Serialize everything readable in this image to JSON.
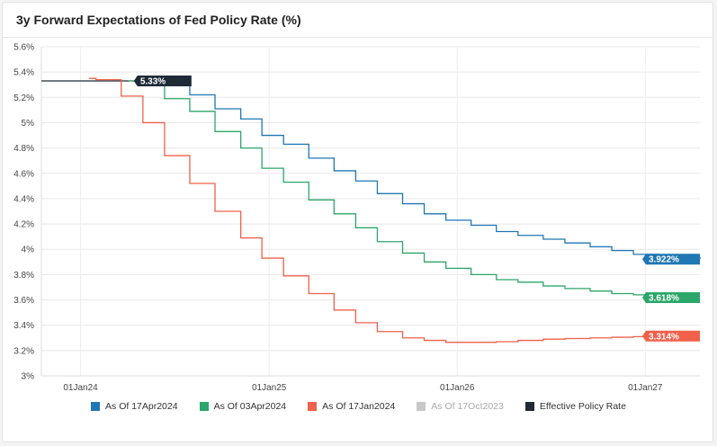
{
  "chart_data": {
    "type": "line",
    "title": "3y Forward Expectations of Fed Policy Rate (%)",
    "ylim": [
      3.0,
      5.6
    ],
    "y_ticks": [
      "3%",
      "3.2%",
      "3.4%",
      "3.6%",
      "3.8%",
      "4%",
      "4.2%",
      "4.4%",
      "4.6%",
      "4.8%",
      "5%",
      "5.2%",
      "5.4%",
      "5.6%"
    ],
    "x_ticks": [
      {
        "label": "01Jan24",
        "date": "2024-01-01"
      },
      {
        "label": "01Jan25",
        "date": "2025-01-01"
      },
      {
        "label": "01Jan26",
        "date": "2026-01-01"
      },
      {
        "label": "01Jan27",
        "date": "2027-01-01"
      }
    ],
    "x_range": [
      "2023-10-17",
      "2027-04-17"
    ],
    "grid": true,
    "legend_position": "bottom",
    "series": [
      {
        "name": "As Of 17Apr2024",
        "color": "#1f77b4",
        "end_label": "3.922%",
        "step": true,
        "points": [
          [
            "2024-04-17",
            5.33
          ],
          [
            "2024-05-01",
            5.32
          ],
          [
            "2024-06-12",
            5.3
          ],
          [
            "2024-07-31",
            5.22
          ],
          [
            "2024-09-18",
            5.11
          ],
          [
            "2024-11-07",
            5.03
          ],
          [
            "2024-12-18",
            4.9
          ],
          [
            "2025-01-29",
            4.83
          ],
          [
            "2025-03-19",
            4.72
          ],
          [
            "2025-05-07",
            4.62
          ],
          [
            "2025-06-18",
            4.54
          ],
          [
            "2025-07-30",
            4.44
          ],
          [
            "2025-09-17",
            4.36
          ],
          [
            "2025-10-29",
            4.28
          ],
          [
            "2025-12-10",
            4.23
          ],
          [
            "2026-01-28",
            4.19
          ],
          [
            "2026-03-18",
            4.14
          ],
          [
            "2026-04-29",
            4.11
          ],
          [
            "2026-06-17",
            4.08
          ],
          [
            "2026-07-29",
            4.05
          ],
          [
            "2026-09-16",
            4.02
          ],
          [
            "2026-10-28",
            3.99
          ],
          [
            "2026-12-09",
            3.96
          ],
          [
            "2027-01-27",
            3.95
          ],
          [
            "2027-03-17",
            3.935
          ],
          [
            "2027-04-17",
            3.922
          ]
        ]
      },
      {
        "name": "As Of 03Apr2024",
        "color": "#2ca66a",
        "end_label": "3.618%",
        "step": true,
        "points": [
          [
            "2024-04-03",
            5.33
          ],
          [
            "2024-05-01",
            5.3
          ],
          [
            "2024-06-12",
            5.19
          ],
          [
            "2024-07-31",
            5.09
          ],
          [
            "2024-09-18",
            4.93
          ],
          [
            "2024-11-07",
            4.8
          ],
          [
            "2024-12-18",
            4.64
          ],
          [
            "2025-01-29",
            4.53
          ],
          [
            "2025-03-19",
            4.39
          ],
          [
            "2025-05-07",
            4.28
          ],
          [
            "2025-06-18",
            4.17
          ],
          [
            "2025-07-30",
            4.06
          ],
          [
            "2025-09-17",
            3.97
          ],
          [
            "2025-10-29",
            3.9
          ],
          [
            "2025-12-10",
            3.85
          ],
          [
            "2026-01-28",
            3.8
          ],
          [
            "2026-03-18",
            3.76
          ],
          [
            "2026-04-29",
            3.74
          ],
          [
            "2026-06-17",
            3.71
          ],
          [
            "2026-07-29",
            3.69
          ],
          [
            "2026-09-16",
            3.67
          ],
          [
            "2026-10-28",
            3.65
          ],
          [
            "2026-12-09",
            3.64
          ],
          [
            "2027-01-27",
            3.63
          ],
          [
            "2027-04-03",
            3.618
          ]
        ]
      },
      {
        "name": "As Of 17Jan2024",
        "color": "#f0604a",
        "end_label": "3.314%",
        "step": true,
        "points": [
          [
            "2024-01-17",
            5.35
          ],
          [
            "2024-01-31",
            5.34
          ],
          [
            "2024-03-20",
            5.21
          ],
          [
            "2024-05-01",
            5.0
          ],
          [
            "2024-06-12",
            4.74
          ],
          [
            "2024-07-31",
            4.52
          ],
          [
            "2024-09-18",
            4.3
          ],
          [
            "2024-11-07",
            4.09
          ],
          [
            "2024-12-18",
            3.93
          ],
          [
            "2025-01-29",
            3.79
          ],
          [
            "2025-03-19",
            3.65
          ],
          [
            "2025-05-07",
            3.52
          ],
          [
            "2025-06-18",
            3.42
          ],
          [
            "2025-07-30",
            3.35
          ],
          [
            "2025-09-17",
            3.3
          ],
          [
            "2025-10-29",
            3.28
          ],
          [
            "2025-12-10",
            3.265
          ],
          [
            "2026-01-28",
            3.265
          ],
          [
            "2026-03-18",
            3.27
          ],
          [
            "2026-04-29",
            3.28
          ],
          [
            "2026-06-17",
            3.29
          ],
          [
            "2026-07-29",
            3.295
          ],
          [
            "2026-09-16",
            3.3
          ],
          [
            "2026-10-28",
            3.305
          ],
          [
            "2026-12-09",
            3.31
          ],
          [
            "2027-01-17",
            3.314
          ]
        ]
      },
      {
        "name": "As Of 17Oct2023",
        "color": "#c8c8c8",
        "end_label": "",
        "step": true,
        "points": []
      },
      {
        "name": "Effective Policy Rate",
        "color": "#1e2a36",
        "end_label": "5.33%",
        "step": false,
        "points": [
          [
            "2023-10-17",
            5.33
          ],
          [
            "2024-04-17",
            5.33
          ]
        ]
      }
    ]
  }
}
